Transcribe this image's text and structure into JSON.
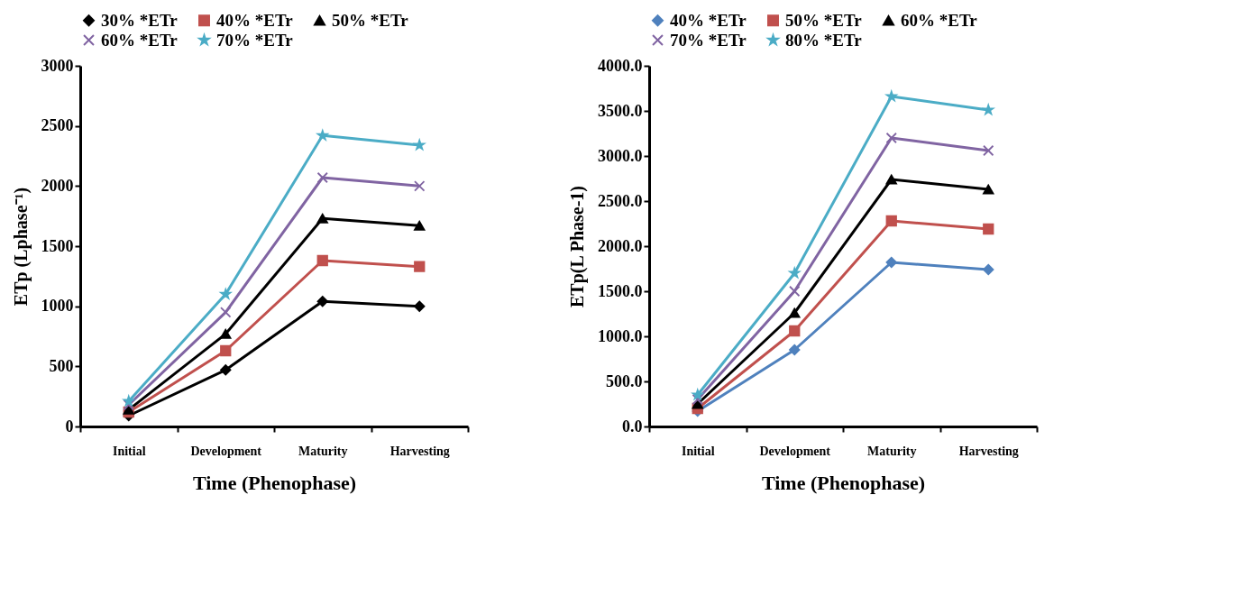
{
  "chart_data": [
    {
      "type": "line",
      "xlabel": "Time (Phenophase)",
      "ylabel": "ETp (Lphase⁻¹)",
      "categories": [
        "Initial",
        "Development",
        "Maturity",
        "Harvesting"
      ],
      "ylim": [
        0,
        3000
      ],
      "yticks": [
        0,
        500,
        1000,
        1500,
        2000,
        2500,
        3000
      ],
      "grid": false,
      "legend": "top",
      "series": [
        {
          "name": "30% *ETr",
          "color": "#000000",
          "marker": "diamond",
          "values": [
            90,
            470,
            1040,
            1000
          ]
        },
        {
          "name": "40% *ETr",
          "color": "#c0504d",
          "marker": "square",
          "values": [
            120,
            630,
            1380,
            1330
          ]
        },
        {
          "name": "50% *ETr",
          "color": "#000000",
          "marker": "triangle",
          "values": [
            140,
            770,
            1730,
            1670
          ]
        },
        {
          "name": "60% *ETr",
          "color": "#8064a2",
          "marker": "cross",
          "values": [
            180,
            950,
            2070,
            2000
          ]
        },
        {
          "name": "70% *ETr",
          "color": "#4bacc6",
          "marker": "star",
          "values": [
            210,
            1100,
            2420,
            2340
          ]
        }
      ]
    },
    {
      "type": "line",
      "xlabel": "Time (Phenophase)",
      "ylabel": "ETp(L Phase-1)",
      "categories": [
        "Initial",
        "Development",
        "Maturity",
        "Harvesting"
      ],
      "ylim": [
        0,
        4000
      ],
      "yticks": [
        {
          "value": 0,
          "label": "0.0"
        },
        {
          "value": 500,
          "label": "500.0"
        },
        {
          "value": 1000,
          "label": "1000.0"
        },
        {
          "value": 1500,
          "label": "1500.0"
        },
        {
          "value": 2000,
          "label": "2000.0"
        },
        {
          "value": 2500,
          "label": "2500.0"
        },
        {
          "value": 3000,
          "label": "3000.0"
        },
        {
          "value": 3500,
          "label": "3500.0"
        },
        {
          "value": 4000,
          "label": "4000.0"
        }
      ],
      "grid": false,
      "legend": "top",
      "series": [
        {
          "name": "40% *ETr",
          "color": "#4f81bd",
          "marker": "diamond",
          "values": [
            170,
            850,
            1820,
            1740
          ]
        },
        {
          "name": "50% *ETr",
          "color": "#c0504d",
          "marker": "square",
          "values": [
            200,
            1060,
            2280,
            2190
          ]
        },
        {
          "name": "60% *ETr",
          "color": "#000000",
          "marker": "triangle",
          "values": [
            250,
            1260,
            2740,
            2630
          ]
        },
        {
          "name": "70% *ETr",
          "color": "#8064a2",
          "marker": "cross",
          "values": [
            300,
            1500,
            3200,
            3060
          ]
        },
        {
          "name": "80% *ETr",
          "color": "#4bacc6",
          "marker": "star",
          "values": [
            350,
            1700,
            3660,
            3510
          ]
        }
      ]
    }
  ]
}
